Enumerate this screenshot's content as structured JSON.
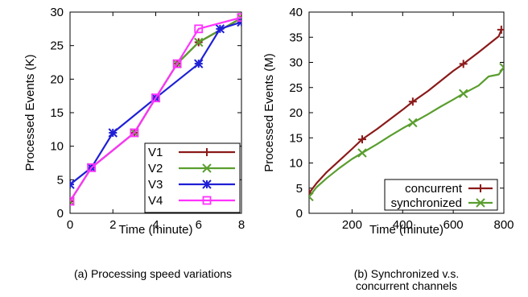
{
  "chart_data": [
    {
      "type": "line",
      "xlabel": "Time (minute)",
      "ylabel": "Processed Events (K)",
      "xlim": [
        0,
        8
      ],
      "ylim": [
        0,
        30
      ],
      "x_ticks": [
        0,
        2,
        4,
        6,
        8
      ],
      "y_ticks": [
        0,
        5,
        10,
        15,
        20,
        25,
        30
      ],
      "grid": false,
      "legend": "bottom-right",
      "caption": "(a) Processing speed variations",
      "series": [
        {
          "name": "V1",
          "color": "#8b1a1a",
          "marker": "plus",
          "x": [
            0,
            1,
            3,
            4,
            5,
            6,
            8
          ],
          "y": [
            1.8,
            6.8,
            12,
            17.2,
            22.3,
            25.5,
            29.1
          ]
        },
        {
          "name": "V2",
          "color": "#5a9e2f",
          "marker": "cross",
          "x": [
            0,
            1,
            3,
            4,
            5,
            6,
            8
          ],
          "y": [
            1.8,
            6.8,
            12,
            17.2,
            22.3,
            25.5,
            29.1
          ]
        },
        {
          "name": "V3",
          "color": "#1f1fd6",
          "marker": "star",
          "x": [
            0,
            1,
            2,
            4,
            6,
            7,
            8
          ],
          "y": [
            4.3,
            6.8,
            12,
            17.2,
            22.3,
            27.5,
            28.5
          ]
        },
        {
          "name": "V4",
          "color": "#ff33ff",
          "marker": "square",
          "x": [
            0,
            1,
            3,
            4,
            5,
            6,
            8
          ],
          "y": [
            1.8,
            6.8,
            12,
            17.2,
            22.3,
            27.5,
            29.2
          ]
        }
      ]
    },
    {
      "type": "line",
      "xlabel": "Time (minute)",
      "ylabel": "Processed Events (M)",
      "xlim": [
        30,
        800
      ],
      "ylim": [
        0,
        40
      ],
      "x_ticks": [
        200,
        400,
        600,
        800
      ],
      "y_ticks": [
        0,
        5,
        10,
        15,
        20,
        25,
        30,
        35,
        40
      ],
      "grid": false,
      "legend": "bottom-right",
      "caption": "(b) Synchronized v.s. concurrent channels",
      "series": [
        {
          "name": "concurrent",
          "color": "#8b1a1a",
          "marker": "plus",
          "x": [
            30,
            60,
            100,
            150,
            200,
            240,
            300,
            350,
            400,
            440,
            500,
            550,
            600,
            640,
            700,
            750,
            780,
            790
          ],
          "y": [
            4.0,
            6.0,
            8.2,
            10.5,
            12.8,
            14.7,
            16.8,
            18.7,
            20.6,
            22.2,
            24.3,
            26.3,
            28.3,
            29.7,
            32.0,
            34.0,
            35.2,
            36.5
          ],
          "marker_x": [
            30,
            240,
            440,
            640,
            790
          ]
        },
        {
          "name": "synchronized",
          "color": "#5a9e2f",
          "marker": "cross",
          "x": [
            30,
            60,
            100,
            150,
            200,
            240,
            300,
            350,
            400,
            440,
            500,
            550,
            600,
            640,
            700,
            740,
            780,
            800
          ],
          "y": [
            3.3,
            5.2,
            7.0,
            9.0,
            10.8,
            12.0,
            13.8,
            15.4,
            16.9,
            18.0,
            19.7,
            21.2,
            22.6,
            23.8,
            25.4,
            27.2,
            27.6,
            29.0
          ],
          "marker_x": [
            30,
            240,
            440,
            640,
            800
          ]
        }
      ]
    }
  ]
}
